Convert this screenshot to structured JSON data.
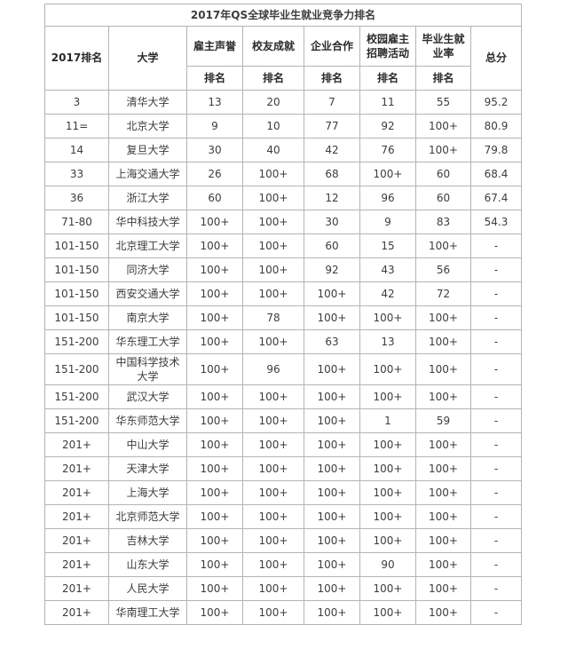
{
  "title": "2017年QS全球毕业生就业竞争力排名",
  "table": {
    "header": {
      "rank_col": "2017排名",
      "university_col": "大学",
      "indicators": [
        "雇主声誉",
        "校友成就",
        "企业合作",
        "校园雇主招聘活动",
        "毕业生就业率"
      ],
      "sub_rank_label": "排名",
      "total_col": "总分"
    },
    "rows": [
      [
        "3",
        "清华大学",
        "13",
        "20",
        "7",
        "11",
        "55",
        "95.2"
      ],
      [
        "11=",
        "北京大学",
        "9",
        "10",
        "77",
        "92",
        "100+",
        "80.9"
      ],
      [
        "14",
        "复旦大学",
        "30",
        "40",
        "42",
        "76",
        "100+",
        "79.8"
      ],
      [
        "33",
        "上海交通大学",
        "26",
        "100+",
        "68",
        "100+",
        "60",
        "68.4"
      ],
      [
        "36",
        "浙江大学",
        "60",
        "100+",
        "12",
        "96",
        "60",
        "67.4"
      ],
      [
        "71-80",
        "华中科技大学",
        "100+",
        "100+",
        "30",
        "9",
        "83",
        "54.3"
      ],
      [
        "101-150",
        "北京理工大学",
        "100+",
        "100+",
        "60",
        "15",
        "100+",
        "-"
      ],
      [
        "101-150",
        "同济大学",
        "100+",
        "100+",
        "92",
        "43",
        "56",
        "-"
      ],
      [
        "101-150",
        "西安交通大学",
        "100+",
        "100+",
        "100+",
        "42",
        "72",
        "-"
      ],
      [
        "101-150",
        "南京大学",
        "100+",
        "78",
        "100+",
        "100+",
        "100+",
        "-"
      ],
      [
        "151-200",
        "华东理工大学",
        "100+",
        "100+",
        "63",
        "13",
        "100+",
        "-"
      ],
      [
        "151-200",
        "中国科学技术大学",
        "100+",
        "96",
        "100+",
        "100+",
        "100+",
        "-"
      ],
      [
        "151-200",
        "武汉大学",
        "100+",
        "100+",
        "100+",
        "100+",
        "100+",
        "-"
      ],
      [
        "151-200",
        "华东师范大学",
        "100+",
        "100+",
        "100+",
        "1",
        "59",
        "-"
      ],
      [
        "201+",
        "中山大学",
        "100+",
        "100+",
        "100+",
        "100+",
        "100+",
        "-"
      ],
      [
        "201+",
        "天津大学",
        "100+",
        "100+",
        "100+",
        "100+",
        "100+",
        "-"
      ],
      [
        "201+",
        "上海大学",
        "100+",
        "100+",
        "100+",
        "100+",
        "100+",
        "-"
      ],
      [
        "201+",
        "北京师范大学",
        "100+",
        "100+",
        "100+",
        "100+",
        "100+",
        "-"
      ],
      [
        "201+",
        "吉林大学",
        "100+",
        "100+",
        "100+",
        "100+",
        "100+",
        "-"
      ],
      [
        "201+",
        "山东大学",
        "100+",
        "100+",
        "100+",
        "90",
        "100+",
        "-"
      ],
      [
        "201+",
        "人民大学",
        "100+",
        "100+",
        "100+",
        "100+",
        "100+",
        "-"
      ],
      [
        "201+",
        "华南理工大学",
        "100+",
        "100+",
        "100+",
        "100+",
        "100+",
        "-"
      ]
    ]
  },
  "colors": {
    "border": "#b4b4b4",
    "text": "#3d3d3d",
    "header_text": "#2a2a2a",
    "background": "#ffffff"
  }
}
